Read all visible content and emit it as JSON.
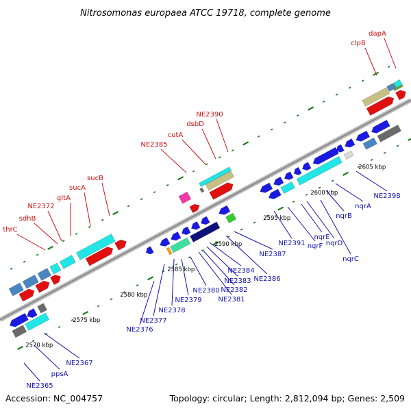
{
  "title": "Nitrosomonas europaea ATCC 19718, complete genome",
  "footer": {
    "accession": "Accession: NC_004757",
    "summary": "Topology: circular; Length: 2,812,094 bp; Genes: 2,509"
  },
  "colors": {
    "backbone": "#8a8a8a",
    "tick": "#1e7d1e",
    "gene_red": "#e01010",
    "gene_blue": "#1a1ae0",
    "cyan": "#22e5e5",
    "steelblue": "#4a86c0",
    "navy": "#10107a",
    "gray": "#6a6a6a",
    "khaki": "#c8bf82",
    "olive": "#7a9a3a",
    "seagreen": "#3ee0a0",
    "pink": "#f03ca8",
    "green": "#33cc33",
    "orange": "#ff9a10",
    "label_red": "#d01010",
    "label_blue": "#1010b0"
  },
  "kbp_ticks": [
    {
      "label": "2570 kbp"
    },
    {
      "label": "2575 kbp"
    },
    {
      "label": "2580 kbp"
    },
    {
      "label": "2585 kbp"
    },
    {
      "label": "2590 kbp"
    },
    {
      "label": "2595 kbp"
    },
    {
      "label": "2600 kbp"
    },
    {
      "label": "2605 kbp"
    }
  ],
  "genes_top": [
    {
      "name": "thrC"
    },
    {
      "name": "sdhB"
    },
    {
      "name": "NE2372"
    },
    {
      "name": "gltA"
    },
    {
      "name": "sucA"
    },
    {
      "name": "sucB"
    },
    {
      "name": "NE2385"
    },
    {
      "name": "cutA"
    },
    {
      "name": "dsbD"
    },
    {
      "name": "NE2390"
    },
    {
      "name": "clpB"
    },
    {
      "name": "dapA"
    }
  ],
  "genes_bottom": [
    {
      "name": "NE2365"
    },
    {
      "name": "ppsA"
    },
    {
      "name": "NE2367"
    },
    {
      "name": "NE2376"
    },
    {
      "name": "NE2377"
    },
    {
      "name": "NE2378"
    },
    {
      "name": "NE2379"
    },
    {
      "name": "NE2380"
    },
    {
      "name": "NE2381"
    },
    {
      "name": "NE2382"
    },
    {
      "name": "NE2383"
    },
    {
      "name": "NE2384"
    },
    {
      "name": "NE2386"
    },
    {
      "name": "NE2387"
    },
    {
      "name": "NE2391"
    },
    {
      "name": "nqrF"
    },
    {
      "name": "nqrE"
    },
    {
      "name": "nqrD"
    },
    {
      "name": "nqrC"
    },
    {
      "name": "nqrB"
    },
    {
      "name": "nqrA"
    },
    {
      "name": "NE2398"
    }
  ]
}
